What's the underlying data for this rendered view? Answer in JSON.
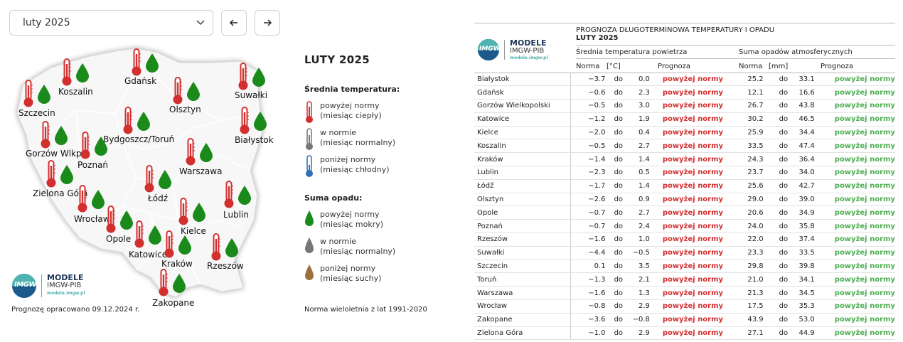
{
  "selector": {
    "value": "luty 2025"
  },
  "map": {
    "cities": [
      {
        "id": "gdansk",
        "name": "Gdańsk"
      },
      {
        "id": "koszalin",
        "name": "Koszalin"
      },
      {
        "id": "suwalki",
        "name": "Suwałki"
      },
      {
        "id": "szczecin",
        "name": "Szczecin"
      },
      {
        "id": "olsztyn",
        "name": "Olsztyn"
      },
      {
        "id": "bialystok",
        "name": "Białystok"
      },
      {
        "id": "bydgoszcz",
        "name": "Bydgoszcz/Toruń"
      },
      {
        "id": "gorzow",
        "name": "Gorzów Wlkp."
      },
      {
        "id": "poznan",
        "name": "Poznań"
      },
      {
        "id": "warszawa",
        "name": "Warszawa"
      },
      {
        "id": "zielona",
        "name": "Zielona Góra"
      },
      {
        "id": "lodz",
        "name": "Łódź"
      },
      {
        "id": "lublin",
        "name": "Lublin"
      },
      {
        "id": "wroclaw",
        "name": "Wrocław"
      },
      {
        "id": "opole",
        "name": "Opole"
      },
      {
        "id": "kielce",
        "name": "Kielce"
      },
      {
        "id": "katowice",
        "name": "Katowice"
      },
      {
        "id": "krakow",
        "name": "Kraków"
      },
      {
        "id": "rzeszow",
        "name": "Rzeszów"
      },
      {
        "id": "zakopane",
        "name": "Zakopane"
      }
    ]
  },
  "logo": {
    "line1": "MODELE",
    "line2": "IMGW-PIB",
    "line3": "modele.imgw.pl",
    "badge": "IMGW"
  },
  "forecast_note": "Prognozę opracowano 09.12.2024 r.",
  "legend": {
    "title": "LUTY 2025",
    "temp_header": "Średnia temperatura:",
    "temp_items": [
      {
        "l1": "powyżej normy",
        "l2": "(miesiąc ciepły)"
      },
      {
        "l1": "w normie",
        "l2": "(miesiąc normalny)"
      },
      {
        "l1": "poniżej normy",
        "l2": "(miesiąc chłodny)"
      }
    ],
    "precip_header": "Suma opadu:",
    "precip_items": [
      {
        "l1": "powyżej normy",
        "l2": "(miesiąc mokry)"
      },
      {
        "l1": "w normie",
        "l2": "(miesiąc normalny)"
      },
      {
        "l1": "poniżej normy",
        "l2": "(miesiąc suchy)"
      }
    ],
    "norm_note": "Norma wieloletnia z lat 1991-2020"
  },
  "colors": {
    "warm": "#d32f2f",
    "normal": "#777777",
    "cold": "#2f6fb5",
    "wet": "#1a8a1a",
    "dry": "#a0703c"
  },
  "table": {
    "title": "PROGNOZA DŁUGOTERMINOWA TEMPERATURY I OPADU",
    "subtitle": "LUTY 2025",
    "group_temp": "Średnia temperatura powietrza",
    "group_precip": "Suma opadów atmosferycznych",
    "h_norma": "Norma",
    "h_unit_t": "[°C]",
    "h_prog": "Prognoza",
    "h_norma2": "Norma",
    "h_unit_p": "[mm]",
    "h_prog2": "Prognoza",
    "rows": [
      {
        "city": "Białystok",
        "t_from": "−3.7",
        "t_do": "do",
        "t_to": "0.0",
        "t_prog": "powyżej normy",
        "p_from": "25.2",
        "p_do": "do",
        "p_to": "33.1",
        "p_prog": "powyżej normy"
      },
      {
        "city": "Gdańsk",
        "t_from": "−0.6",
        "t_do": "do",
        "t_to": "2.3",
        "t_prog": "powyżej normy",
        "p_from": "12.1",
        "p_do": "do",
        "p_to": "16.6",
        "p_prog": "powyżej normy"
      },
      {
        "city": "Gorzów Wielkopolski",
        "t_from": "−0.5",
        "t_do": "do",
        "t_to": "3.0",
        "t_prog": "powyżej normy",
        "p_from": "26.7",
        "p_do": "do",
        "p_to": "43.8",
        "p_prog": "powyżej normy"
      },
      {
        "city": "Katowice",
        "t_from": "−1.2",
        "t_do": "do",
        "t_to": "1.9",
        "t_prog": "powyżej normy",
        "p_from": "30.2",
        "p_do": "do",
        "p_to": "46.5",
        "p_prog": "powyżej normy"
      },
      {
        "city": "Kielce",
        "t_from": "−2.0",
        "t_do": "do",
        "t_to": "0.4",
        "t_prog": "powyżej normy",
        "p_from": "25.9",
        "p_do": "do",
        "p_to": "34.4",
        "p_prog": "powyżej normy"
      },
      {
        "city": "Koszalin",
        "t_from": "−0.5",
        "t_do": "do",
        "t_to": "2.7",
        "t_prog": "powyżej normy",
        "p_from": "33.5",
        "p_do": "do",
        "p_to": "47.4",
        "p_prog": "powyżej normy"
      },
      {
        "city": "Kraków",
        "t_from": "−1.4",
        "t_do": "do",
        "t_to": "1.4",
        "t_prog": "powyżej normy",
        "p_from": "24.3",
        "p_do": "do",
        "p_to": "36.4",
        "p_prog": "powyżej normy"
      },
      {
        "city": "Lublin",
        "t_from": "−2.3",
        "t_do": "do",
        "t_to": "0.5",
        "t_prog": "powyżej normy",
        "p_from": "23.7",
        "p_do": "do",
        "p_to": "34.0",
        "p_prog": "powyżej normy"
      },
      {
        "city": "Łódź",
        "t_from": "−1.7",
        "t_do": "do",
        "t_to": "1.4",
        "t_prog": "powyżej normy",
        "p_from": "25.6",
        "p_do": "do",
        "p_to": "42.7",
        "p_prog": "powyżej normy"
      },
      {
        "city": "Olsztyn",
        "t_from": "−2.6",
        "t_do": "do",
        "t_to": "0.9",
        "t_prog": "powyżej normy",
        "p_from": "29.0",
        "p_do": "do",
        "p_to": "39.0",
        "p_prog": "powyżej normy"
      },
      {
        "city": "Opole",
        "t_from": "−0.7",
        "t_do": "do",
        "t_to": "2.7",
        "t_prog": "powyżej normy",
        "p_from": "20.6",
        "p_do": "do",
        "p_to": "34.9",
        "p_prog": "powyżej normy"
      },
      {
        "city": "Poznań",
        "t_from": "−0.7",
        "t_do": "do",
        "t_to": "2.4",
        "t_prog": "powyżej normy",
        "p_from": "24.0",
        "p_do": "do",
        "p_to": "35.8",
        "p_prog": "powyżej normy"
      },
      {
        "city": "Rzeszów",
        "t_from": "−1.6",
        "t_do": "do",
        "t_to": "1.0",
        "t_prog": "powyżej normy",
        "p_from": "22.0",
        "p_do": "do",
        "p_to": "37.4",
        "p_prog": "powyżej normy"
      },
      {
        "city": "Suwałki",
        "t_from": "−4.4",
        "t_do": "do",
        "t_to": "−0.5",
        "t_prog": "powyżej normy",
        "p_from": "23.3",
        "p_do": "do",
        "p_to": "33.5",
        "p_prog": "powyżej normy"
      },
      {
        "city": "Szczecin",
        "t_from": "0.1",
        "t_do": "do",
        "t_to": "3.5",
        "t_prog": "powyżej normy",
        "p_from": "29.8",
        "p_do": "do",
        "p_to": "39.8",
        "p_prog": "powyżej normy"
      },
      {
        "city": "Toruń",
        "t_from": "−1.3",
        "t_do": "do",
        "t_to": "2.1",
        "t_prog": "powyżej normy",
        "p_from": "21.0",
        "p_do": "do",
        "p_to": "34.1",
        "p_prog": "powyżej normy"
      },
      {
        "city": "Warszawa",
        "t_from": "−1.6",
        "t_do": "do",
        "t_to": "1.3",
        "t_prog": "powyżej normy",
        "p_from": "21.3",
        "p_do": "do",
        "p_to": "34.5",
        "p_prog": "powyżej normy"
      },
      {
        "city": "Wrocław",
        "t_from": "−0.8",
        "t_do": "do",
        "t_to": "2.9",
        "t_prog": "powyżej normy",
        "p_from": "17.5",
        "p_do": "do",
        "p_to": "35.3",
        "p_prog": "powyżej normy"
      },
      {
        "city": "Zakopane",
        "t_from": "−3.6",
        "t_do": "do",
        "t_to": "−0.8",
        "t_prog": "powyżej normy",
        "p_from": "43.9",
        "p_do": "do",
        "p_to": "53.0",
        "p_prog": "powyżej normy"
      },
      {
        "city": "Zielona Góra",
        "t_from": "−1.0",
        "t_do": "do",
        "t_to": "2.9",
        "t_prog": "powyżej normy",
        "p_from": "27.1",
        "p_do": "do",
        "p_to": "44.9",
        "p_prog": "powyżej normy"
      }
    ]
  }
}
